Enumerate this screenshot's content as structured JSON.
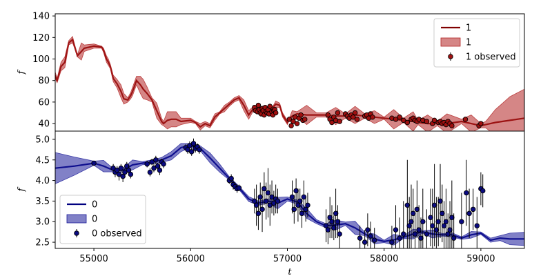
{
  "chart_data": [
    {
      "type": "line",
      "panel": "top",
      "title": "",
      "xlabel": "",
      "ylabel": "f",
      "xlim": [
        54600,
        59450
      ],
      "ylim": [
        33,
        142
      ],
      "yticks": [
        40,
        60,
        80,
        100,
        120,
        140
      ],
      "x_ticklabels_visible": false,
      "legend_position": "upper right",
      "colors": {
        "line": "#800000",
        "band": "#b22222",
        "point": "#a01010"
      },
      "legend": [
        "1",
        "1",
        "1 observed"
      ],
      "series": [
        {
          "name": "1",
          "kind": "line",
          "x": [
            54600,
            54620,
            54660,
            54700,
            54740,
            54780,
            54800,
            54830,
            54870,
            54900,
            55000,
            55080,
            55100,
            55130,
            55150,
            55170,
            55200,
            55240,
            55280,
            55310,
            55350,
            55380,
            55400,
            55440,
            55480,
            55510,
            55550,
            55600,
            55650,
            55700,
            55720,
            55760,
            55800,
            55850,
            55900,
            56000,
            56050,
            56100,
            56150,
            56200,
            56250,
            56300,
            56350,
            56400,
            56450,
            56500,
            56550,
            56600,
            56650,
            56700,
            56750,
            56800,
            56850,
            56880,
            56920,
            56950,
            57000,
            57020,
            57050,
            57100,
            57200,
            57300,
            57400,
            57500,
            57600,
            57700,
            57800,
            57900,
            58000,
            58100,
            58200,
            58300,
            58350,
            58450,
            58550,
            58650,
            58800,
            58900,
            59000,
            59050,
            59150,
            59300,
            59450
          ],
          "y": [
            85,
            80,
            93,
            97,
            115,
            118,
            112,
            103,
            107,
            110,
            112,
            111,
            108,
            100,
            97,
            93,
            82,
            77,
            70,
            63,
            62,
            66,
            70,
            80,
            76,
            72,
            68,
            62,
            52,
            42,
            40,
            43,
            44,
            44,
            42,
            43,
            41,
            37,
            40,
            38,
            46,
            50,
            54,
            58,
            62,
            64,
            57,
            48,
            54,
            52,
            50,
            52,
            55,
            58,
            57,
            48,
            41,
            44,
            47,
            49,
            48,
            48,
            48,
            47,
            47,
            48,
            47,
            46,
            45,
            44,
            43,
            42,
            41,
            40,
            40,
            40,
            42,
            40,
            38,
            39,
            41,
            43,
            45
          ]
        },
        {
          "name": "1",
          "kind": "band",
          "x": [
            54600,
            54620,
            54660,
            54700,
            54740,
            54780,
            54800,
            54830,
            54870,
            54900,
            55000,
            55080,
            55100,
            55130,
            55150,
            55170,
            55200,
            55240,
            55280,
            55310,
            55350,
            55380,
            55400,
            55440,
            55480,
            55510,
            55550,
            55600,
            55650,
            55700,
            55720,
            55760,
            55800,
            55850,
            55900,
            56000,
            56050,
            56100,
            56150,
            56200,
            56250,
            56300,
            56350,
            56400,
            56450,
            56500,
            56550,
            56600,
            56650,
            56700,
            56750,
            56800,
            56850,
            56880,
            56920,
            56950,
            57000,
            57020,
            57050,
            57100,
            57200,
            57300,
            57400,
            57500,
            57600,
            57700,
            57800,
            57900,
            58000,
            58100,
            58200,
            58300,
            58350,
            58450,
            58550,
            58650,
            58800,
            58900,
            59000,
            59050,
            59150,
            59300,
            59450
          ],
          "half_width": [
            3,
            2,
            4,
            5,
            2,
            3,
            2,
            1,
            8,
            3,
            2,
            1,
            2,
            3,
            3,
            2,
            3,
            4,
            6,
            5,
            2,
            3,
            4,
            4,
            8,
            9,
            6,
            2,
            7,
            3,
            2,
            8,
            7,
            7,
            3,
            2,
            1,
            3,
            2,
            2,
            3,
            1,
            3,
            2,
            2,
            2,
            5,
            4,
            2,
            2,
            2,
            2,
            1,
            3,
            2,
            2,
            2,
            1,
            5,
            2,
            9,
            2,
            2,
            8,
            2,
            8,
            2,
            6,
            1,
            9,
            2,
            9,
            2,
            8,
            2,
            9,
            2,
            8,
            2,
            3,
            12,
            22,
            27
          ]
        },
        {
          "name": "1 observed",
          "kind": "points",
          "x": [
            56660,
            56670,
            56690,
            56700,
            56710,
            56720,
            56730,
            56740,
            56750,
            56760,
            56770,
            56780,
            56790,
            56800,
            56810,
            56820,
            56840,
            56850,
            56860,
            56870,
            56880,
            57020,
            57040,
            57060,
            57080,
            57100,
            57120,
            57140,
            57160,
            57180,
            57420,
            57440,
            57460,
            57480,
            57500,
            57520,
            57540,
            57600,
            57620,
            57640,
            57660,
            57680,
            57700,
            57720,
            57800,
            57820,
            57840,
            57860,
            57880,
            58080,
            58120,
            58160,
            58200,
            58240,
            58280,
            58300,
            58320,
            58340,
            58360,
            58400,
            58440,
            58500,
            58520,
            58560,
            58580,
            58600,
            58620,
            58640,
            58660,
            58680,
            58700,
            58840,
            58980,
            59000
          ],
          "y": [
            55,
            52,
            51,
            57,
            53,
            50,
            49,
            54,
            52,
            48,
            55,
            51,
            50,
            53,
            49,
            56,
            51,
            48,
            52,
            53,
            50,
            44,
            38,
            42,
            46,
            40,
            45,
            48,
            43,
            44,
            48,
            44,
            41,
            46,
            43,
            50,
            42,
            49,
            47,
            45,
            48,
            46,
            50,
            44,
            47,
            48,
            45,
            49,
            46,
            45,
            44,
            46,
            43,
            41,
            44,
            45,
            43,
            42,
            44,
            43,
            42,
            40,
            43,
            41,
            42,
            40,
            41,
            39,
            42,
            40,
            38,
            44,
            38,
            40
          ]
        }
      ]
    },
    {
      "type": "line",
      "panel": "bottom",
      "title": "",
      "xlabel": "t",
      "ylabel": "f",
      "xlim": [
        54600,
        59450
      ],
      "ylim": [
        2.35,
        5.2
      ],
      "xticks": [
        55000,
        56000,
        57000,
        58000,
        59000
      ],
      "yticks": [
        2.5,
        3.0,
        3.5,
        4.0,
        4.5,
        5.0
      ],
      "ytick_labels": [
        "2.5",
        "3.0",
        "3.5",
        "4.0",
        "4.5",
        "5.0"
      ],
      "legend_position": "lower left",
      "colors": {
        "line": "#000080",
        "band": "#1a1a99",
        "point": "#0a0a80"
      },
      "legend": [
        "0",
        "0",
        "0 observed"
      ],
      "series": [
        {
          "name": "0",
          "kind": "line",
          "x": [
            54600,
            54800,
            55000,
            55100,
            55200,
            55300,
            55400,
            55500,
            55600,
            55700,
            55800,
            55900,
            56000,
            56100,
            56200,
            56300,
            56400,
            56500,
            56600,
            56700,
            56800,
            56900,
            57000,
            57100,
            57200,
            57300,
            57400,
            57500,
            57600,
            57700,
            57800,
            57900,
            58000,
            58100,
            58200,
            58300,
            58400,
            58500,
            58600,
            58700,
            58800,
            58900,
            59000,
            59100,
            59200,
            59300,
            59450
          ],
          "y": [
            4.3,
            4.35,
            4.42,
            4.35,
            4.25,
            4.25,
            4.38,
            4.42,
            4.45,
            4.5,
            4.6,
            4.8,
            4.85,
            4.78,
            4.55,
            4.3,
            4.05,
            3.82,
            3.55,
            3.45,
            3.5,
            3.45,
            3.55,
            3.48,
            3.2,
            3.0,
            2.9,
            2.92,
            2.95,
            2.85,
            2.7,
            2.58,
            2.52,
            2.56,
            2.62,
            2.7,
            2.75,
            2.7,
            2.68,
            2.68,
            2.6,
            2.68,
            2.72,
            2.55,
            2.6,
            2.58,
            2.58
          ]
        },
        {
          "name": "0",
          "kind": "band",
          "x": [
            54600,
            54800,
            55000,
            55100,
            55200,
            55300,
            55400,
            55500,
            55600,
            55700,
            55800,
            55900,
            56000,
            56100,
            56200,
            56300,
            56400,
            56500,
            56600,
            56700,
            56800,
            56900,
            57000,
            57100,
            57200,
            57300,
            57400,
            57500,
            57600,
            57700,
            57800,
            57900,
            58000,
            58100,
            58200,
            58300,
            58400,
            58500,
            58600,
            58700,
            58800,
            58900,
            59000,
            59100,
            59200,
            59300,
            59450
          ],
          "half_width": [
            0.38,
            0.22,
            0.05,
            0.14,
            0.04,
            0.05,
            0.12,
            0.04,
            0.05,
            0.06,
            0.1,
            0.1,
            0.05,
            0.06,
            0.12,
            0.1,
            0.04,
            0.04,
            0.06,
            0.05,
            0.05,
            0.14,
            0.05,
            0.05,
            0.12,
            0.05,
            0.05,
            0.12,
            0.04,
            0.16,
            0.04,
            0.12,
            0.03,
            0.13,
            0.03,
            0.12,
            0.03,
            0.1,
            0.03,
            0.05,
            0.03,
            0.08,
            0.03,
            0.05,
            0.06,
            0.14,
            0.16
          ]
        },
        {
          "name": "0 observed",
          "kind": "points",
          "x": [
            55000,
            55200,
            55220,
            55240,
            55260,
            55280,
            55300,
            55320,
            55340,
            55360,
            55380,
            55550,
            55580,
            55600,
            55620,
            55640,
            55660,
            55680,
            55700,
            55720,
            55950,
            55970,
            55990,
            56010,
            56030,
            56050,
            56070,
            56090,
            56400,
            56420,
            56440,
            56460,
            56480,
            56500,
            56660,
            56680,
            56700,
            56720,
            56740,
            56760,
            56780,
            56800,
            56820,
            56840,
            56860,
            56880,
            56900,
            57050,
            57070,
            57090,
            57110,
            57130,
            57150,
            57170,
            57190,
            57210,
            57400,
            57420,
            57440,
            57460,
            57480,
            57500,
            57520,
            57540,
            57750,
            57800,
            57830,
            57860,
            57900,
            58080,
            58120,
            58160,
            58200,
            58240,
            58260,
            58280,
            58300,
            58320,
            58340,
            58360,
            58380,
            58400,
            58440,
            58480,
            58500,
            58520,
            58540,
            58560,
            58580,
            58600,
            58620,
            58640,
            58660,
            58680,
            58700,
            58720,
            58800,
            58850,
            58880,
            58920,
            58960,
            59000,
            59020
          ],
          "y": [
            4.42,
            4.3,
            4.2,
            4.25,
            4.15,
            4.3,
            4.1,
            4.2,
            4.35,
            4.25,
            4.15,
            4.4,
            4.2,
            4.45,
            4.3,
            4.5,
            4.35,
            4.25,
            4.45,
            4.4,
            4.8,
            4.75,
            4.85,
            4.7,
            4.9,
            4.78,
            4.82,
            4.75,
            4.0,
            4.05,
            3.9,
            3.85,
            3.8,
            3.82,
            3.5,
            3.4,
            3.2,
            3.6,
            3.3,
            3.8,
            3.5,
            3.7,
            3.4,
            3.6,
            3.45,
            3.55,
            3.5,
            3.6,
            3.3,
            3.75,
            3.4,
            3.5,
            3.2,
            3.6,
            3.3,
            3.4,
            2.9,
            2.8,
            3.1,
            3.0,
            2.85,
            3.2,
            3.0,
            2.7,
            2.6,
            2.5,
            2.8,
            2.65,
            2.55,
            2.5,
            2.8,
            2.6,
            2.7,
            3.4,
            2.9,
            3.0,
            3.2,
            2.7,
            3.3,
            2.8,
            2.6,
            3.0,
            2.7,
            3.1,
            2.9,
            3.4,
            2.8,
            3.0,
            3.5,
            3.2,
            2.9,
            3.0,
            2.7,
            2.8,
            3.1,
            2.6,
            3.0,
            3.7,
            3.2,
            3.3,
            2.9,
            3.8,
            3.75
          ],
          "err": [
            0.04,
            0.1,
            0.12,
            0.1,
            0.15,
            0.1,
            0.14,
            0.1,
            0.1,
            0.12,
            0.1,
            0.08,
            0.1,
            0.08,
            0.1,
            0.1,
            0.08,
            0.12,
            0.08,
            0.1,
            0.08,
            0.1,
            0.1,
            0.1,
            0.12,
            0.1,
            0.08,
            0.1,
            0.08,
            0.1,
            0.12,
            0.1,
            0.1,
            0.08,
            0.3,
            0.5,
            0.4,
            0.35,
            0.55,
            0.4,
            0.45,
            0.6,
            0.5,
            0.4,
            0.3,
            0.35,
            0.3,
            0.4,
            0.35,
            0.3,
            0.4,
            0.3,
            0.35,
            0.4,
            0.3,
            0.3,
            0.4,
            0.35,
            0.5,
            0.4,
            0.3,
            0.6,
            0.4,
            0.35,
            0.3,
            0.3,
            0.4,
            0.35,
            0.3,
            0.4,
            0.6,
            0.5,
            0.8,
            1.1,
            0.7,
            0.9,
            0.6,
            0.5,
            0.7,
            0.6,
            0.5,
            0.8,
            0.6,
            0.7,
            0.9,
            1.0,
            0.8,
            0.6,
            0.9,
            0.7,
            0.6,
            0.8,
            0.5,
            0.7,
            0.9,
            0.6,
            0.7,
            0.8,
            0.6,
            0.5,
            0.7,
            0.4,
            0.4
          ]
        }
      ]
    }
  ]
}
